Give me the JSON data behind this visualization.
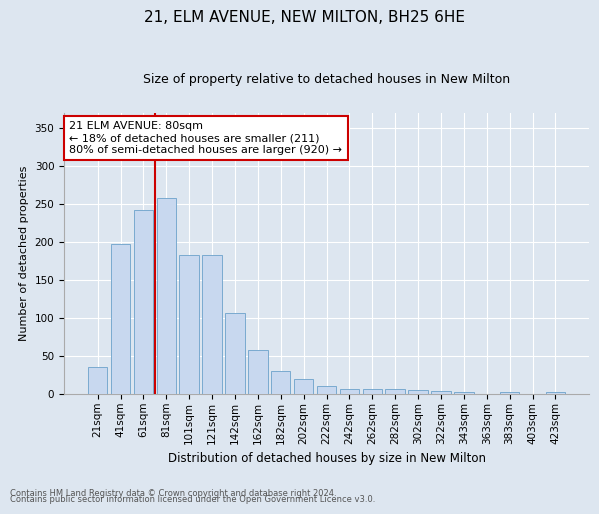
{
  "title1": "21, ELM AVENUE, NEW MILTON, BH25 6HE",
  "title2": "Size of property relative to detached houses in New Milton",
  "xlabel": "Distribution of detached houses by size in New Milton",
  "ylabel": "Number of detached properties",
  "categories": [
    "21sqm",
    "41sqm",
    "61sqm",
    "81sqm",
    "101sqm",
    "121sqm",
    "142sqm",
    "162sqm",
    "182sqm",
    "202sqm",
    "222sqm",
    "242sqm",
    "262sqm",
    "282sqm",
    "302sqm",
    "322sqm",
    "343sqm",
    "363sqm",
    "383sqm",
    "403sqm",
    "423sqm"
  ],
  "values": [
    35,
    198,
    242,
    258,
    183,
    183,
    107,
    58,
    30,
    20,
    10,
    6,
    6,
    6,
    5,
    4,
    2,
    0,
    2,
    0,
    3
  ],
  "bar_color": "#c8d8ef",
  "bar_edge_color": "#7aaad0",
  "vline_color": "#cc0000",
  "vline_x_index": 2,
  "annotation_text": "21 ELM AVENUE: 80sqm\n← 18% of detached houses are smaller (211)\n80% of semi-detached houses are larger (920) →",
  "annotation_box_facecolor": "white",
  "annotation_box_edgecolor": "#cc0000",
  "background_color": "#dde6f0",
  "plot_bg_color": "#dde6f0",
  "ylim": [
    0,
    370
  ],
  "yticks": [
    0,
    50,
    100,
    150,
    200,
    250,
    300,
    350
  ],
  "footnote1": "Contains HM Land Registry data © Crown copyright and database right 2024.",
  "footnote2": "Contains public sector information licensed under the Open Government Licence v3.0.",
  "title1_fontsize": 11,
  "title2_fontsize": 9,
  "xlabel_fontsize": 8.5,
  "ylabel_fontsize": 8,
  "tick_fontsize": 7.5,
  "annotation_fontsize": 8,
  "footnote_fontsize": 6
}
